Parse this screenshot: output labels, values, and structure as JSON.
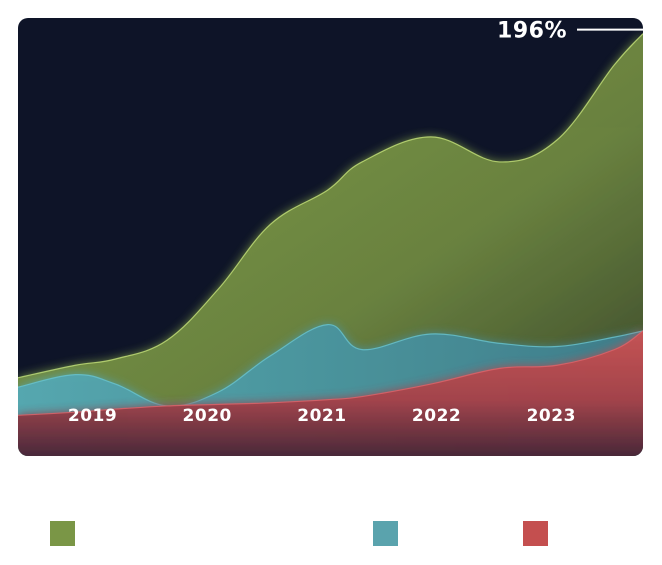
{
  "chart_data": {
    "type": "area",
    "stacked": true,
    "categories": [
      "2019",
      "2020",
      "2021",
      "2022",
      "2023"
    ],
    "x": [
      2018.3,
      2018.8,
      2019.15,
      2019.6,
      2020.05,
      2020.5,
      2021.0,
      2021.3,
      2021.9,
      2022.5,
      2023.0,
      2023.5,
      2023.75
    ],
    "series": [
      {
        "name": "",
        "color": "#c44f4f",
        "values": [
          13,
          14,
          15,
          16,
          16.5,
          17,
          18,
          19,
          23,
          28,
          29,
          34,
          40
        ]
      },
      {
        "name": "",
        "color": "#5aa3ad",
        "values": [
          9,
          12,
          8,
          0,
          4,
          15,
          24,
          15,
          16,
          8,
          6,
          4,
          0
        ]
      },
      {
        "name": "",
        "color": "#7a9646",
        "values": [
          3,
          3,
          8,
          21,
          33,
          42,
          43,
          60,
          63,
          58,
          66,
          87,
          95
        ]
      }
    ],
    "callout": {
      "label": "196%",
      "series": 2,
      "index": 12
    },
    "xlabel": "",
    "ylabel": "",
    "ylim": [
      0,
      140
    ],
    "grid": false,
    "legend": "bottom"
  },
  "colors": {
    "background": "#0e1428",
    "page": "#ffffff"
  }
}
